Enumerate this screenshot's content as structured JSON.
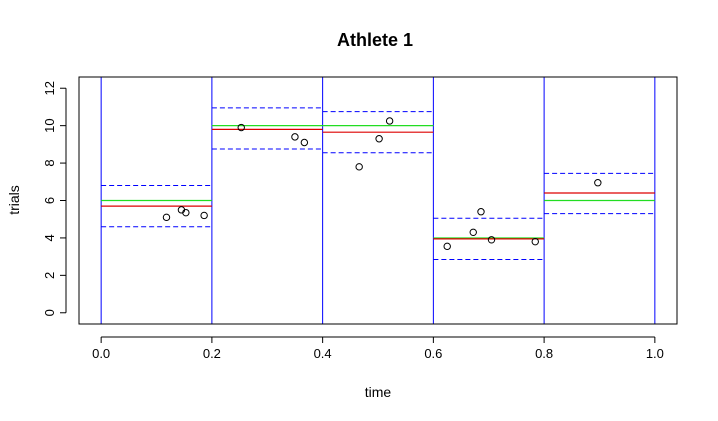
{
  "chart_data": {
    "type": "scatter",
    "title": "Athlete  1",
    "xlabel": "time",
    "ylabel": "trials",
    "xlim": [
      -0.04,
      1.04
    ],
    "ylim": [
      -0.6,
      12.6
    ],
    "grid": false,
    "x_ticks": [
      0.0,
      0.2,
      0.4,
      0.6,
      0.8,
      1.0
    ],
    "x_tick_labels": [
      "0.0",
      "0.2",
      "0.4",
      "0.6",
      "0.8",
      "1.0"
    ],
    "y_ticks": [
      0,
      2,
      4,
      6,
      8,
      10,
      12
    ],
    "y_tick_labels": [
      "0",
      "2",
      "4",
      "6",
      "8",
      "10",
      "12"
    ],
    "vertical_lines": {
      "x": [
        0.0,
        0.2,
        0.4,
        0.6,
        0.8,
        1.0
      ],
      "color": "#0000ff"
    },
    "points": [
      {
        "x": 0.118,
        "y": 5.1
      },
      {
        "x": 0.145,
        "y": 5.5
      },
      {
        "x": 0.153,
        "y": 5.35
      },
      {
        "x": 0.186,
        "y": 5.2
      },
      {
        "x": 0.253,
        "y": 9.9
      },
      {
        "x": 0.35,
        "y": 9.4
      },
      {
        "x": 0.367,
        "y": 9.1
      },
      {
        "x": 0.466,
        "y": 7.8
      },
      {
        "x": 0.502,
        "y": 9.3
      },
      {
        "x": 0.521,
        "y": 10.25
      },
      {
        "x": 0.625,
        "y": 3.55
      },
      {
        "x": 0.672,
        "y": 4.3
      },
      {
        "x": 0.686,
        "y": 5.4
      },
      {
        "x": 0.705,
        "y": 3.9
      },
      {
        "x": 0.784,
        "y": 3.8
      },
      {
        "x": 0.897,
        "y": 6.95
      }
    ],
    "segments": [
      {
        "x0": 0.0,
        "x1": 0.2,
        "green": 6.0,
        "red": 5.7,
        "upper": 6.8,
        "lower": 4.6
      },
      {
        "x0": 0.2,
        "x1": 0.4,
        "green": 10.0,
        "red": 9.8,
        "upper": 10.95,
        "lower": 8.75
      },
      {
        "x0": 0.4,
        "x1": 0.6,
        "green": 10.0,
        "red": 9.65,
        "upper": 10.75,
        "lower": 8.55
      },
      {
        "x0": 0.6,
        "x1": 0.8,
        "green": 4.0,
        "red": 3.95,
        "upper": 5.05,
        "lower": 2.85
      },
      {
        "x0": 0.8,
        "x1": 1.0,
        "green": 6.0,
        "red": 6.4,
        "upper": 7.45,
        "lower": 5.3
      }
    ],
    "colors": {
      "green": "#22dd22",
      "red": "#dd0000",
      "band": "#0000ff",
      "points": "#000000",
      "frame": "#000000"
    }
  }
}
